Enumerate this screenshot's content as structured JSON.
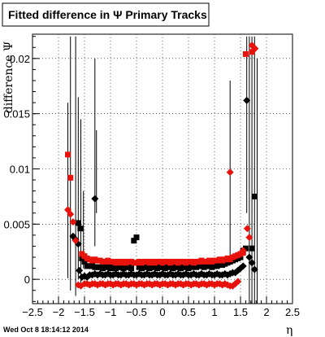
{
  "chart_data": {
    "type": "scatter",
    "title": "Fitted difference in  Ψ   Primary Tracks",
    "xlabel": "η",
    "ylabel": "difference Ψ",
    "xlim": [
      -2.5,
      2.5
    ],
    "ylim": [
      -0.0022,
      0.0222
    ],
    "x_ticks": [
      -2.5,
      -2,
      -1.5,
      -1,
      -0.5,
      0,
      0.5,
      1,
      1.5,
      2,
      2.5
    ],
    "x_tick_labels": [
      "−2.5",
      "−2",
      "−1.5",
      "−1",
      "−0.5",
      "0",
      "0.5",
      "1",
      "1.5",
      "2",
      "2.5"
    ],
    "y_ticks": [
      0,
      0.005,
      0.01,
      0.015,
      0.02
    ],
    "y_tick_labels": [
      "0",
      "0.005",
      "0.01",
      "0.015",
      "0.02"
    ],
    "grid": true,
    "series": [
      {
        "color": "#e8120c",
        "marker": "square",
        "points": [
          [
            -1.82,
            0.0113
          ],
          [
            -1.77,
            0.0092
          ],
          [
            -1.55,
            0.0023
          ],
          [
            -1.5,
            0.0021
          ],
          [
            -1.45,
            0.0019
          ],
          [
            -1.4,
            0.0018
          ],
          [
            -1.35,
            0.0017
          ],
          [
            -1.3,
            0.0018
          ],
          [
            -1.25,
            0.0017
          ],
          [
            -1.2,
            0.0017
          ],
          [
            -1.15,
            0.0016
          ],
          [
            -1.1,
            0.0016
          ],
          [
            -1.05,
            0.0017
          ],
          [
            -1.0,
            0.0016
          ],
          [
            -0.95,
            0.0016
          ],
          [
            -0.9,
            0.0015
          ],
          [
            -0.85,
            0.0016
          ],
          [
            -0.8,
            0.0015
          ],
          [
            -0.75,
            0.0016
          ],
          [
            -0.7,
            0.0015
          ],
          [
            -0.65,
            0.0016
          ],
          [
            -0.6,
            0.0016
          ],
          [
            -0.55,
            0.0015
          ],
          [
            -0.5,
            0.0015
          ],
          [
            -0.45,
            0.0016
          ],
          [
            -0.4,
            0.0015
          ],
          [
            -0.35,
            0.0016
          ],
          [
            -0.3,
            0.0016
          ],
          [
            -0.25,
            0.0015
          ],
          [
            -0.2,
            0.0016
          ],
          [
            -0.15,
            0.0015
          ],
          [
            -0.1,
            0.0016
          ],
          [
            -0.05,
            0.0016
          ],
          [
            0.0,
            0.0015
          ],
          [
            0.05,
            0.0016
          ],
          [
            0.1,
            0.0016
          ],
          [
            0.15,
            0.0015
          ],
          [
            0.2,
            0.0016
          ],
          [
            0.25,
            0.0016
          ],
          [
            0.3,
            0.0015
          ],
          [
            0.35,
            0.0016
          ],
          [
            0.4,
            0.0016
          ],
          [
            0.45,
            0.0015
          ],
          [
            0.5,
            0.0016
          ],
          [
            0.55,
            0.0016
          ],
          [
            0.6,
            0.0015
          ],
          [
            0.65,
            0.0016
          ],
          [
            0.7,
            0.0016
          ],
          [
            0.75,
            0.0017
          ],
          [
            0.8,
            0.0016
          ],
          [
            0.85,
            0.0016
          ],
          [
            0.9,
            0.0017
          ],
          [
            0.95,
            0.0016
          ],
          [
            1.0,
            0.0017
          ],
          [
            1.05,
            0.0017
          ],
          [
            1.1,
            0.0018
          ],
          [
            1.15,
            0.0017
          ],
          [
            1.2,
            0.0018
          ],
          [
            1.25,
            0.0019
          ],
          [
            1.3,
            0.0018
          ],
          [
            1.35,
            0.002
          ],
          [
            1.4,
            0.0021
          ],
          [
            1.45,
            0.0022
          ],
          [
            1.5,
            0.0023
          ],
          [
            1.55,
            0.0024
          ],
          [
            1.6,
            0.0204
          ],
          [
            1.72,
            0.0206
          ]
        ]
      },
      {
        "color": "#e8120c",
        "marker": "diamond",
        "points": [
          [
            -1.82,
            0.0063
          ],
          [
            -1.77,
            0.0059
          ],
          [
            -1.72,
            0.0052
          ],
          [
            -1.67,
            0.0035
          ],
          [
            -1.62,
            -0.0005
          ],
          [
            -1.57,
            -0.0006
          ],
          [
            -1.5,
            -0.0004
          ],
          [
            -1.45,
            -0.0004
          ],
          [
            -1.4,
            -0.0005
          ],
          [
            -1.35,
            -0.0004
          ],
          [
            -1.3,
            -0.0004
          ],
          [
            -1.25,
            -0.0005
          ],
          [
            -1.2,
            -0.0004
          ],
          [
            -1.15,
            -0.0004
          ],
          [
            -1.1,
            -0.0005
          ],
          [
            -1.05,
            -0.0004
          ],
          [
            -1.0,
            -0.0004
          ],
          [
            -0.95,
            -0.0005
          ],
          [
            -0.9,
            -0.0004
          ],
          [
            -0.85,
            -0.0004
          ],
          [
            -0.8,
            -0.0005
          ],
          [
            -0.75,
            -0.0004
          ],
          [
            -0.7,
            -0.0004
          ],
          [
            -0.65,
            -0.0005
          ],
          [
            -0.6,
            -0.0004
          ],
          [
            -0.55,
            -0.0004
          ],
          [
            -0.5,
            -0.0005
          ],
          [
            -0.45,
            -0.0004
          ],
          [
            -0.4,
            -0.0004
          ],
          [
            -0.35,
            -0.0005
          ],
          [
            -0.3,
            -0.0004
          ],
          [
            -0.25,
            -0.0004
          ],
          [
            -0.2,
            -0.0005
          ],
          [
            -0.15,
            -0.0004
          ],
          [
            -0.1,
            -0.0004
          ],
          [
            -0.05,
            -0.0005
          ],
          [
            0.0,
            -0.0004
          ],
          [
            0.05,
            -0.0004
          ],
          [
            0.1,
            -0.0005
          ],
          [
            0.15,
            -0.0004
          ],
          [
            0.2,
            -0.0004
          ],
          [
            0.25,
            -0.0005
          ],
          [
            0.3,
            -0.0004
          ],
          [
            0.35,
            -0.0004
          ],
          [
            0.4,
            -0.0005
          ],
          [
            0.45,
            -0.0004
          ],
          [
            0.5,
            -0.0004
          ],
          [
            0.55,
            -0.0005
          ],
          [
            0.6,
            -0.0004
          ],
          [
            0.65,
            -0.0004
          ],
          [
            0.7,
            -0.0005
          ],
          [
            0.75,
            -0.0004
          ],
          [
            0.8,
            -0.0004
          ],
          [
            0.85,
            -0.0005
          ],
          [
            0.9,
            -0.0004
          ],
          [
            0.95,
            -0.0004
          ],
          [
            1.0,
            -0.0005
          ],
          [
            1.05,
            -0.0004
          ],
          [
            1.1,
            -0.0004
          ],
          [
            1.15,
            -0.0005
          ],
          [
            1.2,
            -0.0004
          ],
          [
            1.25,
            -0.0005
          ],
          [
            1.3,
            -0.0006
          ],
          [
            1.35,
            -0.0006
          ],
          [
            1.4,
            -0.0004
          ],
          [
            1.45,
            -0.0002
          ],
          [
            1.3,
            0.0097
          ],
          [
            1.55,
            0.0026
          ],
          [
            1.63,
            0.0046
          ],
          [
            1.67,
            0.0038
          ],
          [
            1.72,
            0.0212
          ],
          [
            1.78,
            0.0209
          ]
        ]
      },
      {
        "color": "#000000",
        "marker": "square",
        "points": [
          [
            -1.62,
            0.0051
          ],
          [
            -1.58,
            0.0046
          ],
          [
            -1.55,
            0.0019
          ],
          [
            -1.5,
            0.0016
          ],
          [
            -1.45,
            0.0012
          ],
          [
            -1.4,
            0.0012
          ],
          [
            -1.35,
            0.0012
          ],
          [
            -1.3,
            0.0011
          ],
          [
            -1.25,
            0.0011
          ],
          [
            -1.2,
            0.0011
          ],
          [
            -1.15,
            0.001
          ],
          [
            -1.1,
            0.0011
          ],
          [
            -1.05,
            0.0011
          ],
          [
            -1.0,
            0.001
          ],
          [
            -0.95,
            0.0011
          ],
          [
            -0.9,
            0.001
          ],
          [
            -0.85,
            0.0011
          ],
          [
            -0.8,
            0.0011
          ],
          [
            -0.75,
            0.001
          ],
          [
            -0.7,
            0.0011
          ],
          [
            -0.65,
            0.0011
          ],
          [
            -0.6,
            0.001
          ],
          [
            -0.55,
            0.0035
          ],
          [
            -0.5,
            0.0038
          ],
          [
            -0.45,
            0.0011
          ],
          [
            -0.4,
            0.001
          ],
          [
            -0.35,
            0.0011
          ],
          [
            -0.3,
            0.0011
          ],
          [
            -0.25,
            0.001
          ],
          [
            -0.2,
            0.0011
          ],
          [
            -0.15,
            0.0011
          ],
          [
            -0.1,
            0.001
          ],
          [
            -0.05,
            0.0011
          ],
          [
            0.0,
            0.0011
          ],
          [
            0.05,
            0.001
          ],
          [
            0.1,
            0.0011
          ],
          [
            0.15,
            0.0011
          ],
          [
            0.2,
            0.001
          ],
          [
            0.25,
            0.0011
          ],
          [
            0.3,
            0.0011
          ],
          [
            0.35,
            0.001
          ],
          [
            0.4,
            0.0011
          ],
          [
            0.45,
            0.0011
          ],
          [
            0.5,
            0.001
          ],
          [
            0.55,
            0.0011
          ],
          [
            0.6,
            0.0012
          ],
          [
            0.65,
            0.0011
          ],
          [
            0.7,
            0.0012
          ],
          [
            0.75,
            0.0012
          ],
          [
            0.8,
            0.0011
          ],
          [
            0.85,
            0.0012
          ],
          [
            0.9,
            0.0012
          ],
          [
            0.95,
            0.0011
          ],
          [
            1.0,
            0.0012
          ],
          [
            1.05,
            0.0012
          ],
          [
            1.1,
            0.0013
          ],
          [
            1.15,
            0.0013
          ],
          [
            1.2,
            0.0014
          ],
          [
            1.25,
            0.0015
          ],
          [
            1.3,
            0.0016
          ],
          [
            1.35,
            0.0017
          ],
          [
            1.4,
            0.0018
          ],
          [
            1.45,
            0.0019
          ],
          [
            1.5,
            0.002
          ],
          [
            1.55,
            0.0026
          ],
          [
            1.6,
            0.0028
          ],
          [
            1.72,
            0.0028
          ],
          [
            1.77,
            0.0075
          ]
        ]
      },
      {
        "color": "#000000",
        "marker": "diamond",
        "points": [
          [
            -1.72,
            0.0039
          ],
          [
            -1.67,
            0.0036
          ],
          [
            -1.62,
            0.0032
          ],
          [
            -1.6,
            0.0008
          ],
          [
            -1.55,
            0.0002
          ],
          [
            -1.5,
            0.0003
          ],
          [
            -1.45,
            0.0002
          ],
          [
            -1.4,
            0.0004
          ],
          [
            -1.35,
            0.0004
          ],
          [
            -1.3,
            0.0005
          ],
          [
            -1.25,
            0.0004
          ],
          [
            -1.2,
            0.0005
          ],
          [
            -1.15,
            0.0004
          ],
          [
            -1.1,
            0.0004
          ],
          [
            -1.05,
            0.0005
          ],
          [
            -1.0,
            0.0004
          ],
          [
            -0.95,
            0.0004
          ],
          [
            -0.9,
            0.0005
          ],
          [
            -0.85,
            0.0004
          ],
          [
            -0.8,
            0.0004
          ],
          [
            -0.75,
            0.0005
          ],
          [
            -0.7,
            0.0004
          ],
          [
            -0.65,
            0.0004
          ],
          [
            -0.6,
            0.0005
          ],
          [
            -0.55,
            0.0004
          ],
          [
            -0.5,
            0.0004
          ],
          [
            -0.45,
            0.0005
          ],
          [
            -0.4,
            0.0004
          ],
          [
            -0.35,
            0.0004
          ],
          [
            -0.3,
            0.0005
          ],
          [
            -0.25,
            0.0004
          ],
          [
            -0.2,
            0.0004
          ],
          [
            -0.15,
            0.0005
          ],
          [
            -0.1,
            0.0004
          ],
          [
            -0.05,
            0.0004
          ],
          [
            0.0,
            0.0005
          ],
          [
            0.05,
            0.0004
          ],
          [
            0.1,
            0.0004
          ],
          [
            0.15,
            0.0005
          ],
          [
            0.2,
            0.0004
          ],
          [
            0.25,
            0.0004
          ],
          [
            0.3,
            0.0005
          ],
          [
            0.35,
            0.0004
          ],
          [
            0.4,
            0.0004
          ],
          [
            0.45,
            0.0005
          ],
          [
            0.5,
            0.0004
          ],
          [
            0.55,
            0.0004
          ],
          [
            0.6,
            0.0005
          ],
          [
            0.65,
            0.0004
          ],
          [
            0.7,
            0.0004
          ],
          [
            0.75,
            0.0005
          ],
          [
            0.8,
            0.0004
          ],
          [
            0.85,
            0.0004
          ],
          [
            0.9,
            0.0005
          ],
          [
            0.95,
            0.0004
          ],
          [
            1.0,
            0.0004
          ],
          [
            1.05,
            0.0005
          ],
          [
            1.1,
            0.0004
          ],
          [
            1.15,
            0.0004
          ],
          [
            1.2,
            0.0005
          ],
          [
            1.25,
            0.0004
          ],
          [
            1.3,
            0.0005
          ],
          [
            1.35,
            0.0006
          ],
          [
            1.4,
            0.0006
          ],
          [
            1.45,
            0.0008
          ],
          [
            1.5,
            0.001
          ],
          [
            1.55,
            0.0012
          ],
          [
            -1.3,
            0.0073
          ],
          [
            1.62,
            0.0162
          ],
          [
            1.67,
            0.002
          ],
          [
            1.72,
            0.0015
          ],
          [
            1.77,
            0.0009
          ]
        ]
      }
    ],
    "error_bars": [
      {
        "x": -1.82,
        "low": 0.0001,
        "high": 0.016
      },
      {
        "x": -1.77,
        "low": -0.001,
        "high": 0.022
      },
      {
        "x": -1.67,
        "low": -0.0015,
        "high": 0.022
      },
      {
        "x": -1.62,
        "low": 0.0,
        "high": 0.0165
      },
      {
        "x": -1.57,
        "low": -0.0005,
        "high": 0.0145
      },
      {
        "x": -1.52,
        "low": 0.001,
        "high": 0.008
      },
      {
        "x": -1.3,
        "low": 0.003,
        "high": 0.02
      },
      {
        "x": -1.27,
        "low": 0.006,
        "high": 0.0135
      },
      {
        "x": 1.3,
        "low": 0.002,
        "high": 0.018
      },
      {
        "x": 1.62,
        "low": 0.006,
        "high": 0.022
      },
      {
        "x": 1.67,
        "low": -0.0022,
        "high": 0.022
      },
      {
        "x": 1.72,
        "low": -0.0022,
        "high": 0.022
      },
      {
        "x": 1.77,
        "low": -0.0022,
        "high": 0.022
      },
      {
        "x": 1.82,
        "low": -0.0022,
        "high": 0.02
      }
    ],
    "footer": "Wed Oct  8 18:14:12 2014"
  }
}
